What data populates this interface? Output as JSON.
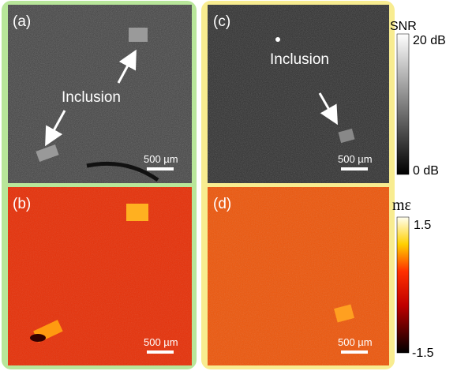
{
  "panels": [
    {
      "label": "(a)",
      "annotation": "Inclusion",
      "scale_bar": "500 µm"
    },
    {
      "label": "(b)",
      "scale_bar": "500 µm"
    },
    {
      "label": "(c)",
      "annotation": "Inclusion",
      "scale_bar": "500 µm"
    },
    {
      "label": "(d)",
      "scale_bar": "500 µm"
    }
  ],
  "colorbars": [
    {
      "title": "SNR",
      "max_label": "20 dB",
      "min_label": "0 dB"
    },
    {
      "title": "mε",
      "max_label": "1.5",
      "min_label": "-1.5"
    }
  ]
}
